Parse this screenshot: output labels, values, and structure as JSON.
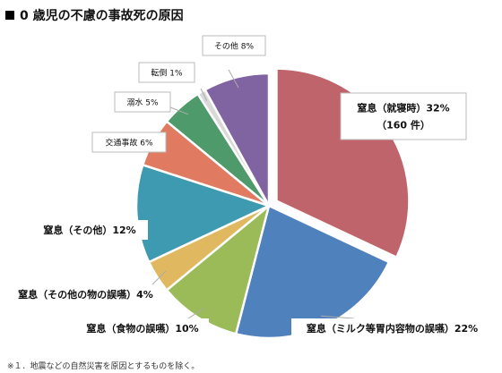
{
  "title": "0 歳児の不慮の事故死の原因",
  "footnote": "※１．地震などの自然災害を原因とするものを除く。",
  "chart_data": {
    "type": "pie",
    "title": "0 歳児の不慮の事故死の原因",
    "slices": [
      {
        "label": "窒息（就寝時）32%",
        "label_line2": "（160 件）",
        "value": 32,
        "color": "#c0646c",
        "exploded": true
      },
      {
        "label": "窒息（ミルク等胃内容物の誤嚥）22%",
        "value": 22,
        "color": "#4f81bd"
      },
      {
        "label": "窒息（食物の誤嚥）10%",
        "value": 10,
        "color": "#9bbb59"
      },
      {
        "label": "窒息（その他の物の誤嚥）4%",
        "value": 4,
        "color": "#e0b860"
      },
      {
        "label": "窒息（その他）12%",
        "value": 12,
        "color": "#3d9ab0"
      },
      {
        "label": "交通事故 6%",
        "value": 6,
        "color": "#e07b62"
      },
      {
        "label": "溺水 5%",
        "value": 5,
        "color": "#4e9a6a"
      },
      {
        "label": "転倒 1%",
        "value": 1,
        "color": "#d9d9d9"
      },
      {
        "label": "その他 8%",
        "value": 8,
        "color": "#8064a2"
      }
    ]
  }
}
